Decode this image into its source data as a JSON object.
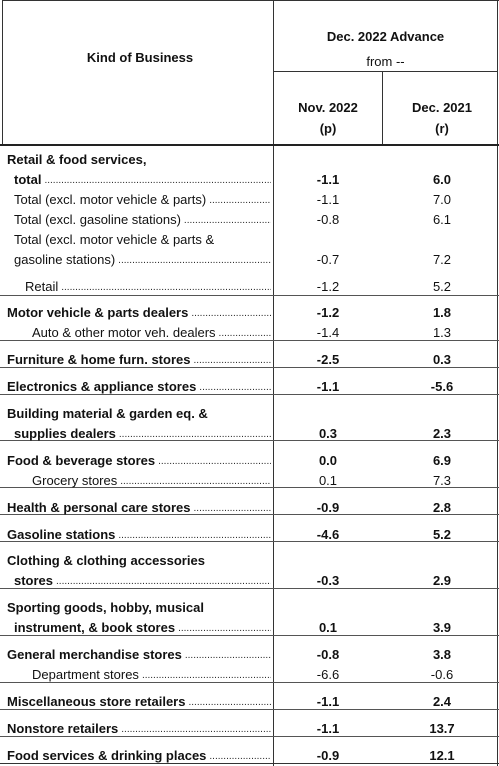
{
  "header": {
    "kind_of_business": "Kind of Business",
    "advance": "Dec. 2022 Advance",
    "from": "from --",
    "col1_month": "Nov. 2022",
    "col1_flag": "(p)",
    "col2_month": "Dec. 2021",
    "col2_flag": "(r)"
  },
  "rows": [
    {
      "line1": "Retail & food services,",
      "line2": "total",
      "nov": "-1.1",
      "dec": "6.0",
      "bold": true
    },
    {
      "line1": "Total (excl. motor vehicle & parts)",
      "nov": "-1.1",
      "dec": "7.0",
      "bold": false
    },
    {
      "line1": "Total (excl. gasoline stations)",
      "nov": "-0.8",
      "dec": "6.1",
      "bold": false
    },
    {
      "line1": "Total (excl. motor vehicle & parts &",
      "line2": "gasoline stations)",
      "nov": "-0.7",
      "dec": "7.2",
      "bold": false
    },
    {
      "line1": "Retail",
      "nov": "-1.2",
      "dec": "5.2",
      "bold": false
    },
    {
      "line1": "Motor vehicle & parts dealers",
      "nov": "-1.2",
      "dec": "1.8",
      "bold": true
    },
    {
      "line1": "Auto & other motor veh. dealers",
      "nov": "-1.4",
      "dec": "1.3",
      "bold": false
    },
    {
      "line1": "Furniture & home furn. stores",
      "nov": "-2.5",
      "dec": "0.3",
      "bold": true
    },
    {
      "line1": "Electronics & appliance stores",
      "nov": "-1.1",
      "dec": "-5.6",
      "bold": true
    },
    {
      "line1": "Building material & garden eq. &",
      "line2": "supplies dealers",
      "nov": "0.3",
      "dec": "2.3",
      "bold": true
    },
    {
      "line1": "Food & beverage stores",
      "nov": "0.0",
      "dec": "6.9",
      "bold": true
    },
    {
      "line1": "Grocery stores",
      "nov": "0.1",
      "dec": "7.3",
      "bold": false
    },
    {
      "line1": "Health & personal care stores",
      "nov": "-0.9",
      "dec": "2.8",
      "bold": true
    },
    {
      "line1": "Gasoline stations",
      "nov": "-4.6",
      "dec": "5.2",
      "bold": true
    },
    {
      "line1": "Clothing & clothing accessories",
      "line2": "stores",
      "nov": "-0.3",
      "dec": "2.9",
      "bold": true
    },
    {
      "line1": "Sporting goods, hobby, musical",
      "line2": "instrument, & book stores",
      "nov": "0.1",
      "dec": "3.9",
      "bold": true
    },
    {
      "line1": "General merchandise stores",
      "nov": "-0.8",
      "dec": "3.8",
      "bold": true
    },
    {
      "line1": "Department stores",
      "nov": "-6.6",
      "dec": "-0.6",
      "bold": false
    },
    {
      "line1": "Miscellaneous store retailers",
      "nov": "-1.1",
      "dec": "2.4",
      "bold": true
    },
    {
      "line1": "Nonstore retailers",
      "nov": "-1.1",
      "dec": "13.7",
      "bold": true
    },
    {
      "line1": "Food services & drinking places",
      "nov": "-0.9",
      "dec": "12.1",
      "bold": true
    }
  ]
}
